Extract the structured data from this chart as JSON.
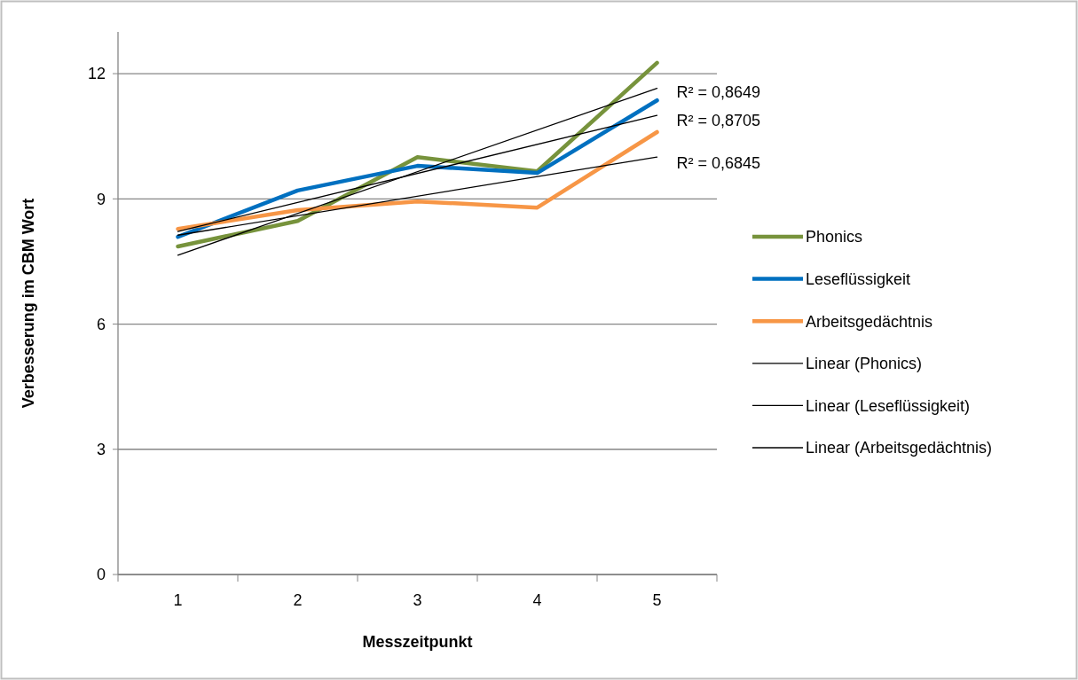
{
  "chart_data": {
    "type": "line",
    "xlabel": "Messzeitpunkt",
    "ylabel": "Verbesserung im CBM Wort",
    "categories": [
      "1",
      "2",
      "3",
      "4",
      "5"
    ],
    "ylim": [
      0,
      13
    ],
    "yticks": [
      0,
      3,
      6,
      9,
      12
    ],
    "grid": "y",
    "legend": "right",
    "marker": "none",
    "series": [
      {
        "name": "Phonics",
        "color": "#77933c",
        "values": [
          7.86,
          8.47,
          10.0,
          9.66,
          12.26
        ]
      },
      {
        "name": "Leseflüssigkeit",
        "color": "#0070c0",
        "values": [
          8.09,
          9.2,
          9.79,
          9.62,
          11.36
        ]
      },
      {
        "name": "Arbeitsgedächtnis",
        "color": "#f79646",
        "values": [
          8.28,
          8.73,
          8.94,
          8.79,
          10.6
        ]
      },
      {
        "name": "Linear (Phonics)",
        "type": "line",
        "color": "#000000",
        "x": [
          "1",
          "5"
        ],
        "values": [
          7.65,
          11.65
        ]
      },
      {
        "name": "Linear (Leseflüssigkeit)",
        "type": "line",
        "color": "#000000",
        "x": [
          "1",
          "5"
        ],
        "values": [
          8.22,
          11.0
        ]
      },
      {
        "name": "Linear (Arbeitsgedächtnis)",
        "type": "line",
        "color": "#000000",
        "x": [
          "1",
          "5"
        ],
        "values": [
          8.13,
          10.0
        ]
      }
    ],
    "annotations": [
      {
        "text": "R² = 0,8649",
        "x": "5",
        "y": 11.65
      },
      {
        "text": "R² = 0,8705",
        "x": "5",
        "y": 11.0
      },
      {
        "text": "R² = 0,6845",
        "x": "5",
        "y": 10.0
      }
    ]
  }
}
